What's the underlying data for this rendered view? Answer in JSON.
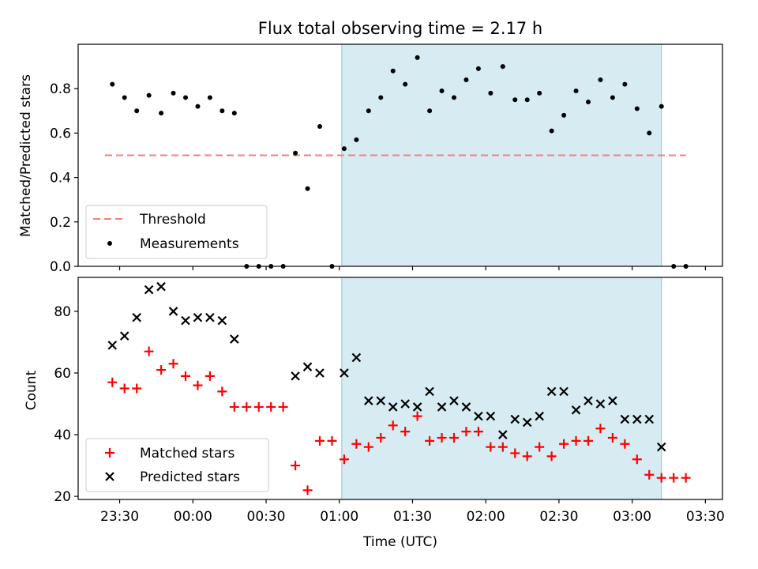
{
  "title": "Flux total observing time = 2.17 h",
  "colors": {
    "threshold": "#f08080",
    "measurement": "#000000",
    "matched": "#ff0000",
    "predicted": "#000000",
    "highlight": "#add8e6"
  },
  "chart_data": [
    {
      "type": "scatter",
      "ylabel": "Matched/Predicted stars",
      "xlim": [
        "23:13",
        "03:37"
      ],
      "ylim": [
        0,
        1.0
      ],
      "yticks": [
        "0.0",
        "0.2",
        "0.4",
        "0.6",
        "0.8"
      ],
      "highlight_span": [
        "01:01",
        "03:12"
      ],
      "threshold": {
        "name": "Threshold",
        "value": 0.5,
        "x_range": [
          "23:24",
          "03:22"
        ]
      },
      "legend": {
        "placement": "lower-left",
        "entries": [
          "Threshold",
          "Measurements"
        ]
      },
      "series": [
        {
          "name": "Measurements",
          "marker": "dot",
          "points": [
            [
              "23:27",
              0.82
            ],
            [
              "23:32",
              0.76
            ],
            [
              "23:37",
              0.7
            ],
            [
              "23:42",
              0.77
            ],
            [
              "23:47",
              0.69
            ],
            [
              "23:52",
              0.78
            ],
            [
              "23:57",
              0.76
            ],
            [
              "00:02",
              0.72
            ],
            [
              "00:07",
              0.76
            ],
            [
              "00:12",
              0.7
            ],
            [
              "00:17",
              0.69
            ],
            [
              "00:22",
              0.0
            ],
            [
              "00:27",
              0.0
            ],
            [
              "00:32",
              0.0
            ],
            [
              "00:37",
              0.0
            ],
            [
              "00:42",
              0.51
            ],
            [
              "00:47",
              0.35
            ],
            [
              "00:52",
              0.63
            ],
            [
              "00:57",
              0.0
            ],
            [
              "01:02",
              0.53
            ],
            [
              "01:07",
              0.57
            ],
            [
              "01:12",
              0.7
            ],
            [
              "01:17",
              0.76
            ],
            [
              "01:22",
              0.88
            ],
            [
              "01:27",
              0.82
            ],
            [
              "01:32",
              0.94
            ],
            [
              "01:37",
              0.7
            ],
            [
              "01:42",
              0.79
            ],
            [
              "01:47",
              0.76
            ],
            [
              "01:52",
              0.84
            ],
            [
              "01:57",
              0.89
            ],
            [
              "02:02",
              0.78
            ],
            [
              "02:07",
              0.9
            ],
            [
              "02:12",
              0.75
            ],
            [
              "02:17",
              0.75
            ],
            [
              "02:22",
              0.78
            ],
            [
              "02:27",
              0.61
            ],
            [
              "02:32",
              0.68
            ],
            [
              "02:37",
              0.79
            ],
            [
              "02:42",
              0.74
            ],
            [
              "02:47",
              0.84
            ],
            [
              "02:52",
              0.76
            ],
            [
              "02:57",
              0.82
            ],
            [
              "03:02",
              0.71
            ],
            [
              "03:07",
              0.6
            ],
            [
              "03:12",
              0.72
            ],
            [
              "03:17",
              0.0
            ],
            [
              "03:22",
              0.0
            ]
          ]
        }
      ]
    },
    {
      "type": "scatter",
      "xlabel": "Time (UTC)",
      "ylabel": "Count",
      "xlim": [
        "23:13",
        "03:37"
      ],
      "ylim": [
        19,
        91
      ],
      "yticks": [
        "20",
        "40",
        "60",
        "80"
      ],
      "xticks": [
        "23:30",
        "00:00",
        "00:30",
        "01:00",
        "01:30",
        "02:00",
        "02:30",
        "03:00",
        "03:30"
      ],
      "highlight_span": [
        "01:01",
        "03:12"
      ],
      "legend": {
        "placement": "lower-left",
        "entries": [
          "Matched stars",
          "Predicted stars"
        ]
      },
      "series": [
        {
          "name": "Matched stars",
          "marker": "plus",
          "points": [
            [
              "23:27",
              57
            ],
            [
              "23:32",
              55
            ],
            [
              "23:37",
              55
            ],
            [
              "23:42",
              67
            ],
            [
              "23:47",
              61
            ],
            [
              "23:52",
              63
            ],
            [
              "23:57",
              59
            ],
            [
              "00:02",
              56
            ],
            [
              "00:07",
              59
            ],
            [
              "00:12",
              54
            ],
            [
              "00:17",
              49
            ],
            [
              "00:22",
              49
            ],
            [
              "00:27",
              49
            ],
            [
              "00:32",
              49
            ],
            [
              "00:37",
              49
            ],
            [
              "00:42",
              30
            ],
            [
              "00:47",
              22
            ],
            [
              "00:52",
              38
            ],
            [
              "00:57",
              38
            ],
            [
              "01:02",
              32
            ],
            [
              "01:07",
              37
            ],
            [
              "01:12",
              36
            ],
            [
              "01:17",
              39
            ],
            [
              "01:22",
              43
            ],
            [
              "01:27",
              41
            ],
            [
              "01:32",
              46
            ],
            [
              "01:37",
              38
            ],
            [
              "01:42",
              39
            ],
            [
              "01:47",
              39
            ],
            [
              "01:52",
              41
            ],
            [
              "01:57",
              41
            ],
            [
              "02:02",
              36
            ],
            [
              "02:07",
              36
            ],
            [
              "02:12",
              34
            ],
            [
              "02:17",
              33
            ],
            [
              "02:22",
              36
            ],
            [
              "02:27",
              33
            ],
            [
              "02:32",
              37
            ],
            [
              "02:37",
              38
            ],
            [
              "02:42",
              38
            ],
            [
              "02:47",
              42
            ],
            [
              "02:52",
              39
            ],
            [
              "02:57",
              37
            ],
            [
              "03:02",
              32
            ],
            [
              "03:07",
              27
            ],
            [
              "03:12",
              26
            ],
            [
              "03:17",
              26
            ],
            [
              "03:22",
              26
            ]
          ]
        },
        {
          "name": "Predicted stars",
          "marker": "x",
          "points": [
            [
              "23:27",
              69
            ],
            [
              "23:32",
              72
            ],
            [
              "23:37",
              78
            ],
            [
              "23:42",
              87
            ],
            [
              "23:47",
              88
            ],
            [
              "23:52",
              80
            ],
            [
              "23:57",
              77
            ],
            [
              "00:02",
              78
            ],
            [
              "00:07",
              78
            ],
            [
              "00:12",
              77
            ],
            [
              "00:17",
              71
            ],
            [
              "00:42",
              59
            ],
            [
              "00:47",
              62
            ],
            [
              "00:52",
              60
            ],
            [
              "01:02",
              60
            ],
            [
              "01:07",
              65
            ],
            [
              "01:12",
              51
            ],
            [
              "01:17",
              51
            ],
            [
              "01:22",
              49
            ],
            [
              "01:27",
              50
            ],
            [
              "01:32",
              49
            ],
            [
              "01:37",
              54
            ],
            [
              "01:42",
              49
            ],
            [
              "01:47",
              51
            ],
            [
              "01:52",
              49
            ],
            [
              "01:57",
              46
            ],
            [
              "02:02",
              46
            ],
            [
              "02:07",
              40
            ],
            [
              "02:12",
              45
            ],
            [
              "02:17",
              44
            ],
            [
              "02:22",
              46
            ],
            [
              "02:27",
              54
            ],
            [
              "02:32",
              54
            ],
            [
              "02:37",
              48
            ],
            [
              "02:42",
              51
            ],
            [
              "02:47",
              50
            ],
            [
              "02:52",
              51
            ],
            [
              "02:57",
              45
            ],
            [
              "03:02",
              45
            ],
            [
              "03:07",
              45
            ],
            [
              "03:12",
              36
            ]
          ]
        }
      ]
    }
  ]
}
